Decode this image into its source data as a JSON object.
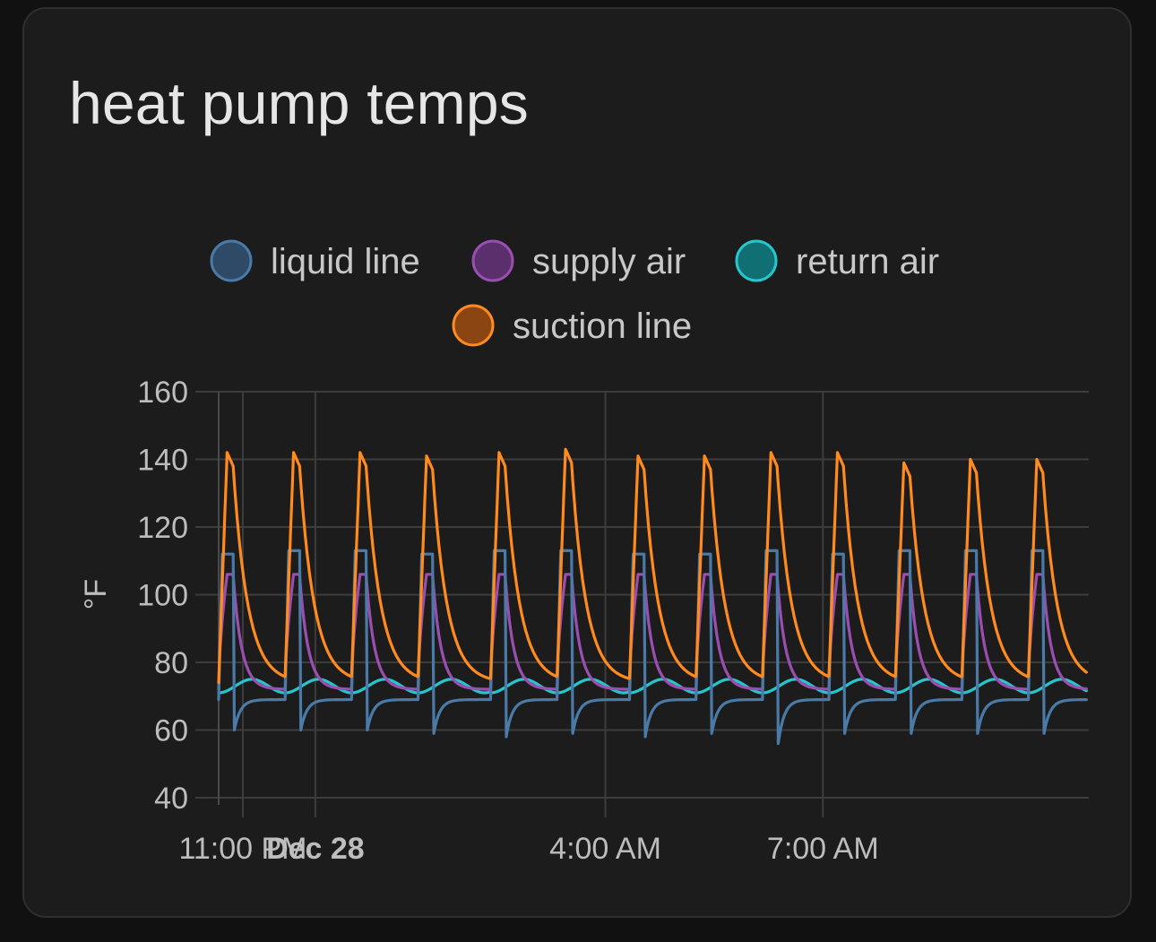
{
  "card": {
    "title": "heat pump temps"
  },
  "chart_data": {
    "type": "line",
    "title": "heat pump temps",
    "ylabel": "°F",
    "ylim": [
      40,
      160
    ],
    "yticks": [
      40,
      60,
      80,
      100,
      120,
      140,
      160
    ],
    "xlim": [
      "Dec 27 22:40",
      "Dec 28 10:40"
    ],
    "xticks": [
      {
        "label": "11:00 PM",
        "time": "Dec 27 23:00",
        "bold": false
      },
      {
        "label": "Dec 28",
        "time": "Dec 28 00:00",
        "bold": true
      },
      {
        "label": "4:00 AM",
        "time": "Dec 28 04:00",
        "bold": false
      },
      {
        "label": "7:00 AM",
        "time": "Dec 28 07:00",
        "bold": false
      }
    ],
    "grid": true,
    "legend_position": "top-center",
    "cycle_starts": [
      "22:40",
      "23:35",
      "00:30",
      "01:25",
      "02:25",
      "03:20",
      "04:20",
      "05:15",
      "06:10",
      "07:05",
      "08:00",
      "08:55",
      "09:50"
    ],
    "series": [
      {
        "name": "liquid line",
        "color": "#4a7aa8",
        "fill": "#2e4a66",
        "description": "cycling: ~112°F plateau on, sharp drop to ~60°F at off, recovering to ~69°F",
        "cycle_peaks": [
          112,
          113,
          113,
          112,
          113,
          113,
          112,
          112,
          113,
          112,
          113,
          113,
          113
        ],
        "cycle_troughs": [
          60,
          60,
          60,
          59,
          58,
          59,
          58,
          59,
          56,
          59,
          59,
          59,
          59
        ],
        "rest_level": 69
      },
      {
        "name": "supply air",
        "color": "#9a4fb0",
        "fill": "#5b2f6b",
        "description": "cycling: ~106°F plateau on, decaying to ~72°F off",
        "cycle_peaks": [
          106,
          106,
          106,
          106,
          106,
          106,
          106,
          106,
          106,
          106,
          106,
          106,
          106
        ],
        "rest_level": 72
      },
      {
        "name": "return air",
        "color": "#26c6cc",
        "fill": "#0f6f72",
        "description": "slow oscillation between ~71°F and ~75°F",
        "range": [
          71,
          75
        ]
      },
      {
        "name": "suction line",
        "color": "#ff8a1e",
        "fill": "#8a4512",
        "description": "cycling: peaks ~140–142°F on, decaying to ~74°F off",
        "cycle_peaks": [
          142,
          142,
          142,
          141,
          142,
          143,
          141,
          141,
          142,
          142,
          139,
          140,
          140
        ],
        "rest_level": 74
      }
    ]
  }
}
